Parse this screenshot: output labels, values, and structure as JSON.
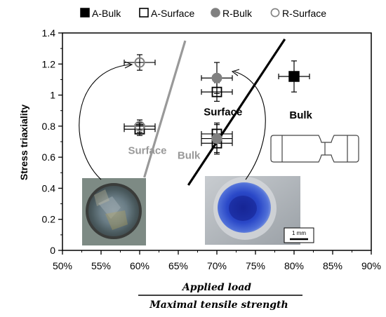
{
  "chart_data": {
    "type": "scatter",
    "title": "",
    "xlabel_numerator": "Applied load",
    "xlabel_denominator": "Maximal tensile strength",
    "ylabel": "Stress triaxiality",
    "xlim": [
      50,
      90
    ],
    "ylim": [
      0,
      1.4
    ],
    "x_ticks": [
      50,
      55,
      60,
      65,
      70,
      75,
      80,
      85,
      90
    ],
    "x_tick_labels": [
      "50%",
      "55%",
      "60%",
      "65%",
      "70%",
      "75%",
      "80%",
      "85%",
      "90%"
    ],
    "y_ticks": [
      0,
      0.2,
      0.4,
      0.6,
      0.8,
      1,
      1.2,
      1.4
    ],
    "y_tick_labels": [
      "0",
      "0.2",
      "0.4",
      "0.6",
      "0.8",
      "1",
      "1.2",
      "1.4"
    ],
    "legend_position": "top",
    "grid": false,
    "series": [
      {
        "name": "A-Bulk",
        "marker": "filled-square",
        "color": "#000000",
        "points": [
          {
            "x": 80,
            "y": 1.12,
            "xerr": 2,
            "yerr": 0.1
          }
        ]
      },
      {
        "name": "A-Surface",
        "marker": "open-square",
        "color": "#000000",
        "points": [
          {
            "x": 60,
            "y": 0.78,
            "xerr": 2,
            "yerr": 0.04
          },
          {
            "x": 70,
            "y": 1.02,
            "xerr": 2,
            "yerr": 0.06
          },
          {
            "x": 70,
            "y": 0.75,
            "xerr": 2,
            "yerr": 0.06
          },
          {
            "x": 70,
            "y": 0.69,
            "xerr": 2,
            "yerr": 0.06
          }
        ]
      },
      {
        "name": "R-Bulk",
        "marker": "filled-circle",
        "color": "#808080",
        "points": [
          {
            "x": 70,
            "y": 1.11,
            "xerr": 2,
            "yerr": 0.1
          },
          {
            "x": 70,
            "y": 0.72,
            "xerr": 2,
            "yerr": 0.1
          }
        ]
      },
      {
        "name": "R-Surface",
        "marker": "open-circle",
        "color": "#808080",
        "points": [
          {
            "x": 60,
            "y": 1.21,
            "xerr": 2,
            "yerr": 0.05
          },
          {
            "x": 60,
            "y": 0.8,
            "xerr": 2,
            "yerr": 0.04
          }
        ]
      }
    ],
    "boundary_lines": [
      {
        "color": "#999999",
        "from": [
          60.6,
          0.47
        ],
        "to": [
          65.9,
          1.35
        ]
      },
      {
        "color": "#000000",
        "from": [
          66.3,
          0.42
        ],
        "to": [
          78.8,
          1.36
        ]
      }
    ],
    "annotations": [
      {
        "text": "Surface",
        "x": 58.5,
        "y": 0.62,
        "color": "#999999"
      },
      {
        "text": "Bulk",
        "x": 64.9,
        "y": 0.59,
        "color": "#999999"
      },
      {
        "text": "Surface",
        "x": 68.3,
        "y": 0.87,
        "color": "#000000"
      },
      {
        "text": "Bulk",
        "x": 79.4,
        "y": 0.85,
        "color": "#000000"
      }
    ],
    "scale_bar_label": "1 mm"
  }
}
